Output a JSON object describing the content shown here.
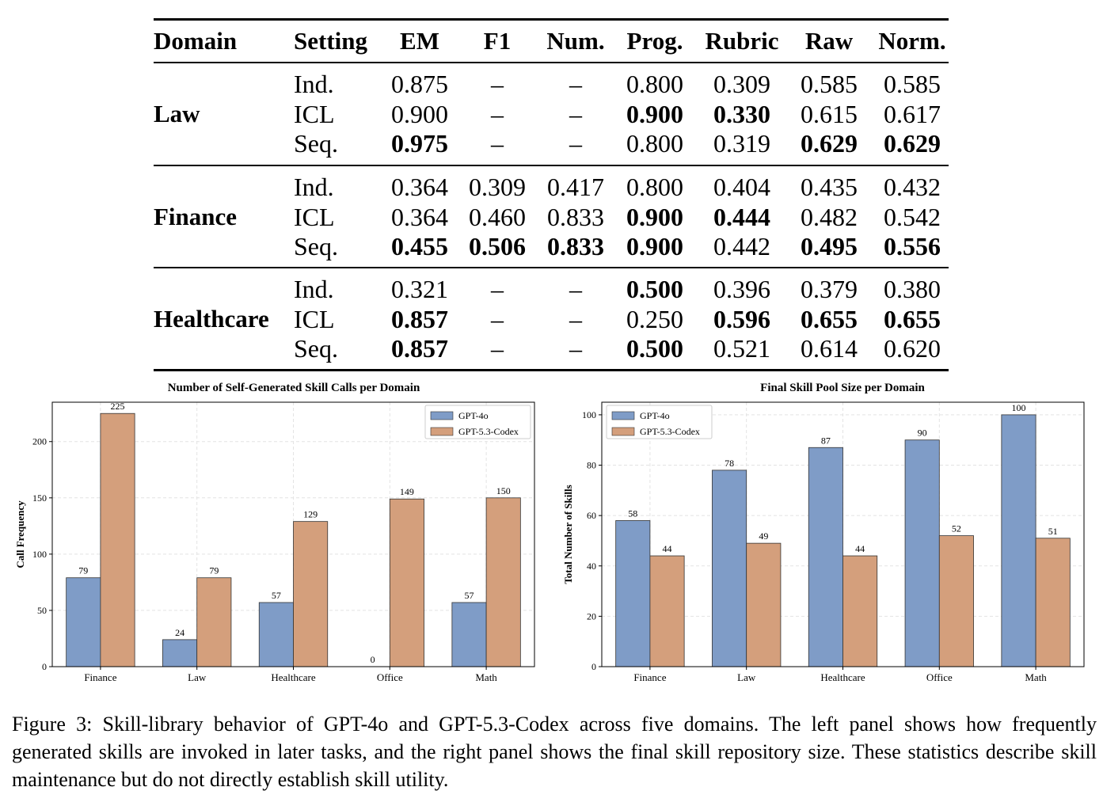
{
  "table": {
    "headers": [
      "Domain",
      "Setting",
      "EM",
      "F1",
      "Num.",
      "Prog.",
      "Rubric",
      "Raw",
      "Norm."
    ],
    "groups": [
      {
        "domain": "Law",
        "rows": [
          {
            "setting": "Ind.",
            "values": [
              "0.875",
              "–",
              "–",
              "0.800",
              "0.309",
              "0.585",
              "0.585"
            ],
            "bold": [
              false,
              false,
              false,
              false,
              false,
              false,
              false
            ]
          },
          {
            "setting": "ICL",
            "values": [
              "0.900",
              "–",
              "–",
              "0.900",
              "0.330",
              "0.615",
              "0.617"
            ],
            "bold": [
              false,
              false,
              false,
              true,
              true,
              false,
              false
            ]
          },
          {
            "setting": "Seq.",
            "values": [
              "0.975",
              "–",
              "–",
              "0.800",
              "0.319",
              "0.629",
              "0.629"
            ],
            "bold": [
              true,
              false,
              false,
              false,
              false,
              true,
              true
            ]
          }
        ]
      },
      {
        "domain": "Finance",
        "rows": [
          {
            "setting": "Ind.",
            "values": [
              "0.364",
              "0.309",
              "0.417",
              "0.800",
              "0.404",
              "0.435",
              "0.432"
            ],
            "bold": [
              false,
              false,
              false,
              false,
              false,
              false,
              false
            ]
          },
          {
            "setting": "ICL",
            "values": [
              "0.364",
              "0.460",
              "0.833",
              "0.900",
              "0.444",
              "0.482",
              "0.542"
            ],
            "bold": [
              false,
              false,
              false,
              true,
              true,
              false,
              false
            ]
          },
          {
            "setting": "Seq.",
            "values": [
              "0.455",
              "0.506",
              "0.833",
              "0.900",
              "0.442",
              "0.495",
              "0.556"
            ],
            "bold": [
              true,
              true,
              true,
              true,
              false,
              true,
              true
            ]
          }
        ]
      },
      {
        "domain": "Healthcare",
        "rows": [
          {
            "setting": "Ind.",
            "values": [
              "0.321",
              "–",
              "–",
              "0.500",
              "0.396",
              "0.379",
              "0.380"
            ],
            "bold": [
              false,
              false,
              false,
              true,
              false,
              false,
              false
            ]
          },
          {
            "setting": "ICL",
            "values": [
              "0.857",
              "–",
              "–",
              "0.250",
              "0.596",
              "0.655",
              "0.655"
            ],
            "bold": [
              true,
              false,
              false,
              false,
              true,
              true,
              true
            ]
          },
          {
            "setting": "Seq.",
            "values": [
              "0.857",
              "–",
              "–",
              "0.500",
              "0.521",
              "0.614",
              "0.620"
            ],
            "bold": [
              true,
              false,
              false,
              true,
              false,
              false,
              false
            ]
          }
        ]
      }
    ]
  },
  "chart_data": [
    {
      "type": "bar",
      "title": "Number of Self-Generated Skill Calls per Domain",
      "xlabel": "",
      "ylabel": "Call Frequency",
      "categories": [
        "Finance",
        "Law",
        "Healthcare",
        "Office",
        "Math"
      ],
      "series": [
        {
          "name": "GPT-4o",
          "values": [
            79,
            24,
            57,
            0,
            57
          ],
          "color": "#7f9cc7"
        },
        {
          "name": "GPT-5.3-Codex",
          "values": [
            225,
            79,
            129,
            149,
            150
          ],
          "color": "#d49f7c"
        }
      ],
      "ylim": [
        0,
        235
      ],
      "yticks": [
        0,
        50,
        100,
        150,
        200
      ],
      "grid": true,
      "legend": "top-right"
    },
    {
      "type": "bar",
      "title": "Final Skill Pool Size per Domain",
      "xlabel": "",
      "ylabel": "Total Number of Skills",
      "categories": [
        "Finance",
        "Law",
        "Healthcare",
        "Office",
        "Math"
      ],
      "series": [
        {
          "name": "GPT-4o",
          "values": [
            58,
            78,
            87,
            90,
            100
          ],
          "color": "#7f9cc7"
        },
        {
          "name": "GPT-5.3-Codex",
          "values": [
            44,
            49,
            44,
            52,
            51
          ],
          "color": "#d49f7c"
        }
      ],
      "ylim": [
        0,
        105
      ],
      "yticks": [
        0,
        20,
        40,
        60,
        80,
        100
      ],
      "grid": true,
      "legend": "top-left"
    }
  ],
  "caption": "Figure 3: Skill-library behavior of GPT-4o and GPT-5.3-Codex across five domains. The left panel shows how frequently generated skills are invoked in later tasks, and the right panel shows the final skill repository size. These statistics describe skill maintenance but do not directly establish skill utility."
}
